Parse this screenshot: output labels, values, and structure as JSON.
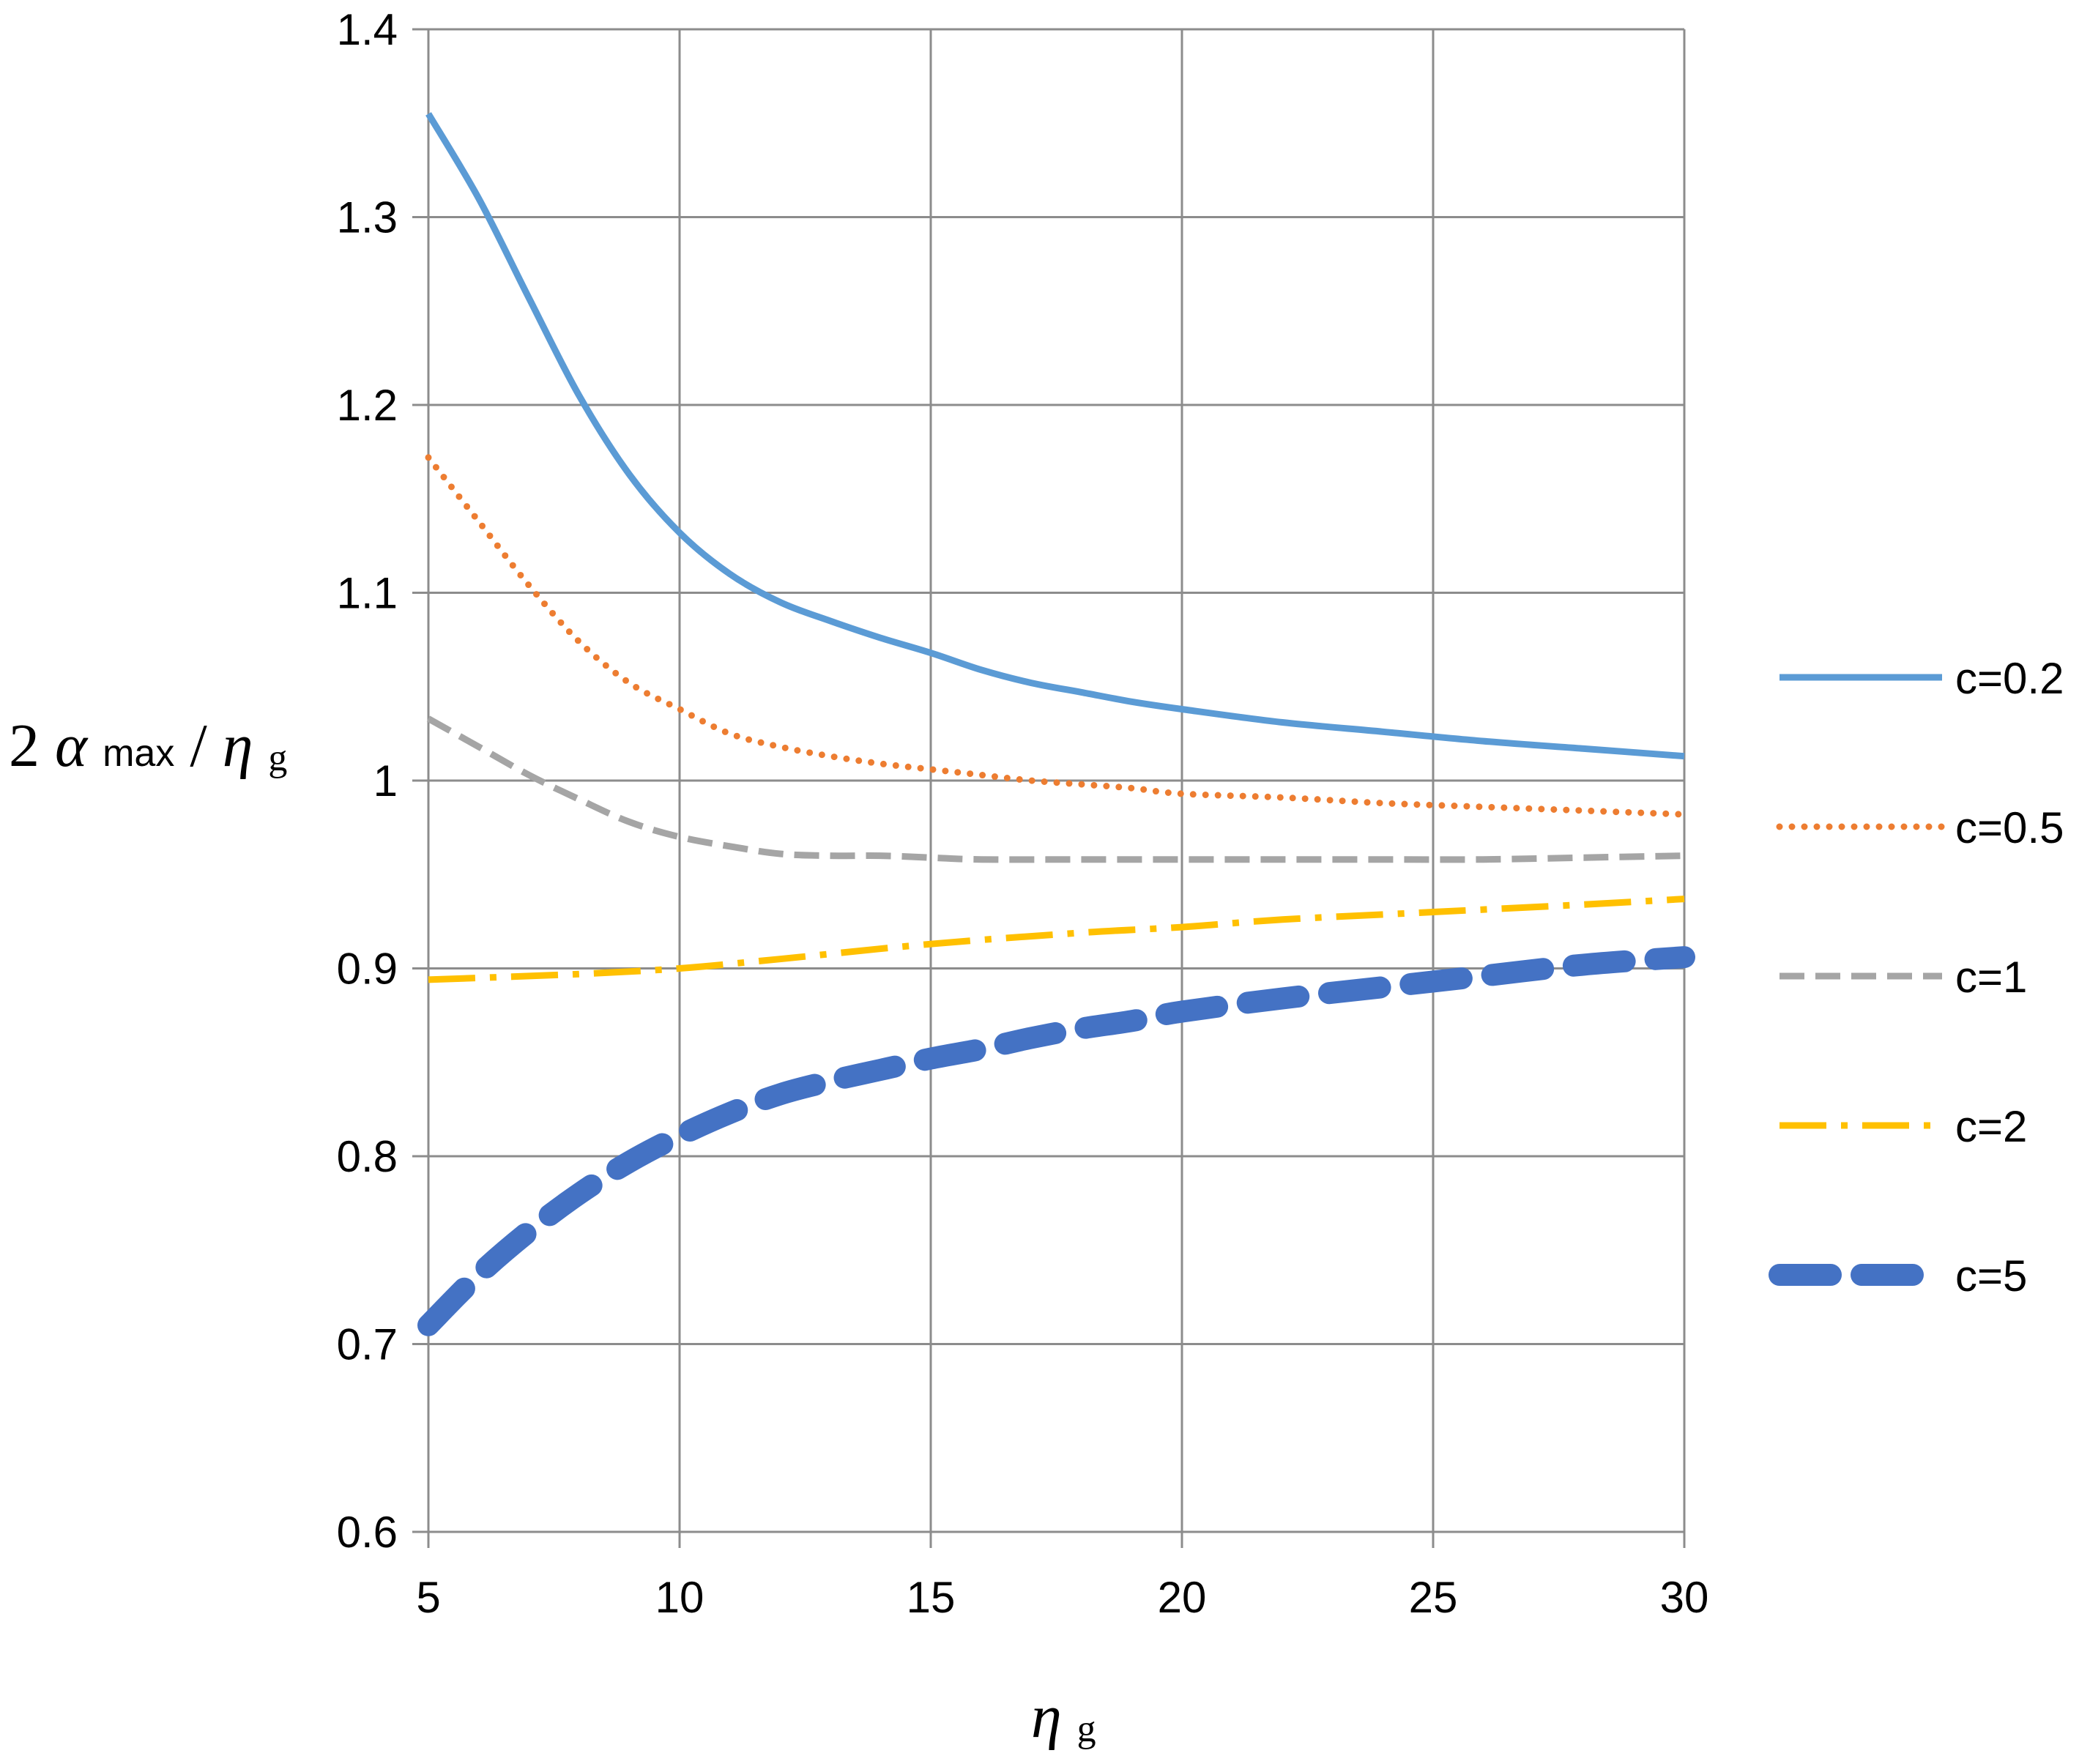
{
  "chart_data": {
    "type": "line",
    "title": "",
    "xlabel": {
      "symbol": "η",
      "sub": "g"
    },
    "ylabel": {
      "prefix": "2",
      "alpha": "α",
      "alpha_sub": "max",
      "slash": "/",
      "eta": "η",
      "eta_sub": "g"
    },
    "xlim": [
      5,
      30
    ],
    "ylim": [
      0.6,
      1.4
    ],
    "grid": true,
    "legend_position": "right",
    "x_ticks": [
      {
        "value": 5,
        "label": "5"
      },
      {
        "value": 10,
        "label": "10"
      },
      {
        "value": 15,
        "label": "15"
      },
      {
        "value": 20,
        "label": "20"
      },
      {
        "value": 25,
        "label": "25"
      },
      {
        "value": 30,
        "label": "30"
      }
    ],
    "y_ticks": [
      {
        "value": 0.6,
        "label": "0.6"
      },
      {
        "value": 0.7,
        "label": "0.7"
      },
      {
        "value": 0.8,
        "label": "0.8"
      },
      {
        "value": 0.9,
        "label": "0.9"
      },
      {
        "value": 1.0,
        "label": "1"
      },
      {
        "value": 1.1,
        "label": "1.1"
      },
      {
        "value": 1.2,
        "label": "1.2"
      },
      {
        "value": 1.3,
        "label": "1.3"
      },
      {
        "value": 1.4,
        "label": "1.4"
      }
    ],
    "series": [
      {
        "name": "c=0.2",
        "style": "solid",
        "color": "#5B9BD5",
        "x": [
          5,
          6,
          7,
          8,
          9,
          10,
          11,
          12,
          13,
          14,
          15,
          16,
          17,
          18,
          19,
          20,
          22,
          24,
          26,
          28,
          30
        ],
        "values": [
          1.355,
          1.31,
          1.257,
          1.205,
          1.163,
          1.132,
          1.11,
          1.095,
          1.085,
          1.076,
          1.068,
          1.059,
          1.052,
          1.047,
          1.042,
          1.038,
          1.031,
          1.026,
          1.021,
          1.017,
          1.013
        ]
      },
      {
        "name": "c=0.5",
        "style": "dotted",
        "color": "#ED7D31",
        "x": [
          5,
          6,
          7,
          8,
          9,
          10,
          11,
          12,
          13,
          14,
          15,
          16,
          17,
          18,
          19,
          20,
          22,
          24,
          26,
          28,
          30
        ],
        "values": [
          1.172,
          1.138,
          1.104,
          1.074,
          1.052,
          1.038,
          1.025,
          1.018,
          1.013,
          1.009,
          1.006,
          1.003,
          1.0,
          0.998,
          0.996,
          0.993,
          0.991,
          0.988,
          0.986,
          0.984,
          0.982
        ]
      },
      {
        "name": "c=1",
        "style": "dashed",
        "color": "#A5A5A5",
        "x": [
          5,
          6,
          7,
          8,
          9,
          10,
          11,
          12,
          13,
          14,
          15,
          16,
          18,
          20,
          22,
          24,
          26,
          28,
          30
        ],
        "values": [
          1.033,
          1.018,
          1.003,
          0.99,
          0.978,
          0.97,
          0.965,
          0.961,
          0.96,
          0.96,
          0.959,
          0.958,
          0.958,
          0.958,
          0.958,
          0.958,
          0.958,
          0.959,
          0.96
        ]
      },
      {
        "name": "c=2",
        "style": "dashdot",
        "color": "#FFC000",
        "x": [
          5,
          8,
          10,
          12,
          15,
          18,
          20,
          22,
          25,
          28,
          30
        ],
        "values": [
          0.894,
          0.897,
          0.9,
          0.905,
          0.913,
          0.919,
          0.922,
          0.926,
          0.93,
          0.934,
          0.937
        ]
      },
      {
        "name": "c=5",
        "style": "longdash",
        "color": "#4472C4",
        "x": [
          5,
          6,
          7,
          8,
          9,
          10,
          11,
          12,
          13,
          14,
          15,
          16,
          17,
          18,
          19,
          20,
          22,
          24,
          26,
          28,
          30
        ],
        "values": [
          0.71,
          0.737,
          0.76,
          0.78,
          0.797,
          0.811,
          0.823,
          0.833,
          0.84,
          0.846,
          0.852,
          0.857,
          0.863,
          0.868,
          0.872,
          0.877,
          0.884,
          0.89,
          0.896,
          0.902,
          0.906
        ]
      }
    ]
  }
}
